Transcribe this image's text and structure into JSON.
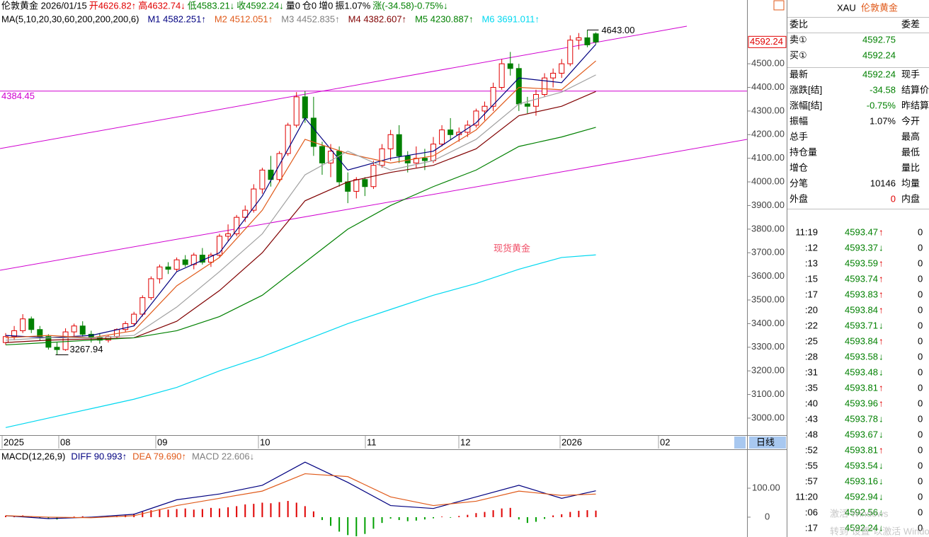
{
  "header": {
    "segments": [
      {
        "text": "伦敦黄金 2026/01/15",
        "color": "#000000"
      },
      {
        "text": "开4626.82↑",
        "color": "#e00000"
      },
      {
        "text": "高4632.74↓",
        "color": "#e00000"
      },
      {
        "text": "低4583.21↓",
        "color": "#008000"
      },
      {
        "text": "收4592.24↓",
        "color": "#008000"
      },
      {
        "text": "量0",
        "color": "#000000"
      },
      {
        "text": "仓0",
        "color": "#000000"
      },
      {
        "text": "增0",
        "color": "#000000"
      },
      {
        "text": "振1.07%",
        "color": "#000000"
      },
      {
        "text": "涨(-34.58)-0.75%↓",
        "color": "#008000"
      }
    ],
    "ma_segments": [
      {
        "text": "MA(5,10,20,30,60,200,200,200,6)",
        "color": "#000000"
      },
      {
        "text": "M1 4582.251↑",
        "color": "#000080"
      },
      {
        "text": "M2 4512.051↑",
        "color": "#e05a1a"
      },
      {
        "text": "M3 4452.835↑",
        "color": "#808080"
      },
      {
        "text": "M4 4382.607↑",
        "color": "#800000"
      },
      {
        "text": "M5 4230.887↑",
        "color": "#008000"
      },
      {
        "text": "M6 3691.011↑",
        "color": "#00d8f0"
      }
    ]
  },
  "chart": {
    "ylim": [
      2928,
      4716
    ],
    "yticks": [
      {
        "value": 3000,
        "label": "3000.00"
      },
      {
        "value": 3100,
        "label": "3100.00"
      },
      {
        "value": 3200,
        "label": "3200.00"
      },
      {
        "value": 3300,
        "label": "3300.00"
      },
      {
        "value": 3400,
        "label": "3400.00"
      },
      {
        "value": 3500,
        "label": "3500.00"
      },
      {
        "value": 3600,
        "label": "3600.00"
      },
      {
        "value": 3700,
        "label": "3700.00"
      },
      {
        "value": 3800,
        "label": "3800.00"
      },
      {
        "value": 3900,
        "label": "3900.00"
      },
      {
        "value": 4000,
        "label": "4000.00"
      },
      {
        "value": 4100,
        "label": "4100.00"
      },
      {
        "value": 4200,
        "label": "4200.00"
      },
      {
        "value": 4300,
        "label": "4300.00"
      },
      {
        "value": 4400,
        "label": "4400.00"
      },
      {
        "value": 4500,
        "label": "4500.00"
      }
    ],
    "current_price": {
      "value": 4592.24,
      "label": "4592.24"
    },
    "hline": {
      "value": 4384.45,
      "label": "4384.45"
    },
    "high_note": {
      "value": 4643,
      "label": "4643.00"
    },
    "low_note": {
      "value": 3267.94,
      "label": "3267.94"
    },
    "watermark": "现货黄金",
    "x_labels": [
      "2025",
      "08",
      "09",
      "10",
      "11",
      "12",
      "2026",
      "02"
    ],
    "period_button": "日线",
    "candles": [
      [
        3320,
        3360,
        3310,
        3345
      ],
      [
        3345,
        3390,
        3330,
        3370
      ],
      [
        3370,
        3440,
        3360,
        3420
      ],
      [
        3420,
        3430,
        3360,
        3375
      ],
      [
        3375,
        3390,
        3330,
        3345
      ],
      [
        3345,
        3355,
        3290,
        3300
      ],
      [
        3300,
        3320,
        3267.94,
        3290
      ],
      [
        3290,
        3380,
        3285,
        3365
      ],
      [
        3365,
        3400,
        3345,
        3390
      ],
      [
        3390,
        3410,
        3345,
        3355
      ],
      [
        3355,
        3370,
        3320,
        3340
      ],
      [
        3340,
        3360,
        3315,
        3330
      ],
      [
        3330,
        3350,
        3320,
        3345
      ],
      [
        3345,
        3380,
        3335,
        3375
      ],
      [
        3375,
        3410,
        3365,
        3400
      ],
      [
        3400,
        3450,
        3390,
        3440
      ],
      [
        3440,
        3520,
        3430,
        3510
      ],
      [
        3510,
        3600,
        3500,
        3590
      ],
      [
        3590,
        3650,
        3570,
        3640
      ],
      [
        3640,
        3660,
        3610,
        3630
      ],
      [
        3630,
        3680,
        3620,
        3670
      ],
      [
        3670,
        3690,
        3640,
        3650
      ],
      [
        3650,
        3700,
        3630,
        3690
      ],
      [
        3690,
        3720,
        3650,
        3660
      ],
      [
        3660,
        3700,
        3640,
        3690
      ],
      [
        3690,
        3780,
        3680,
        3770
      ],
      [
        3770,
        3820,
        3750,
        3780
      ],
      [
        3780,
        3860,
        3770,
        3850
      ],
      [
        3850,
        3900,
        3830,
        3880
      ],
      [
        3880,
        3990,
        3870,
        3970
      ],
      [
        3970,
        4060,
        3950,
        4050
      ],
      [
        4050,
        4110,
        3980,
        4010
      ],
      [
        4010,
        4130,
        4000,
        4120
      ],
      [
        4120,
        4250,
        4110,
        4240
      ],
      [
        4240,
        4380,
        4230,
        4360
      ],
      [
        4360,
        4384.45,
        4250,
        4270
      ],
      [
        4270,
        4360,
        4110,
        4150
      ],
      [
        4150,
        4170,
        4030,
        4080
      ],
      [
        4080,
        4160,
        4020,
        4130
      ],
      [
        4130,
        4150,
        3980,
        4000
      ],
      [
        4000,
        4040,
        3910,
        3960
      ],
      [
        3960,
        4020,
        3930,
        4010
      ],
      [
        4010,
        4020,
        3940,
        3980
      ],
      [
        3980,
        4090,
        3970,
        4070
      ],
      [
        4070,
        4160,
        4060,
        4140
      ],
      [
        4140,
        4220,
        4090,
        4200
      ],
      [
        4200,
        4240,
        4080,
        4110
      ],
      [
        4110,
        4130,
        4040,
        4080
      ],
      [
        4080,
        4150,
        4060,
        4100
      ],
      [
        4100,
        4140,
        4050,
        4090
      ],
      [
        4090,
        4190,
        4080,
        4160
      ],
      [
        4160,
        4240,
        4150,
        4220
      ],
      [
        4220,
        4270,
        4180,
        4200
      ],
      [
        4200,
        4230,
        4170,
        4210
      ],
      [
        4210,
        4260,
        4190,
        4240
      ],
      [
        4240,
        4310,
        4230,
        4300
      ],
      [
        4300,
        4340,
        4260,
        4320
      ],
      [
        4320,
        4420,
        4300,
        4400
      ],
      [
        4400,
        4520,
        4390,
        4500
      ],
      [
        4500,
        4550,
        4450,
        4480
      ],
      [
        4480,
        4500,
        4300,
        4330
      ],
      [
        4330,
        4360,
        4290,
        4320
      ],
      [
        4320,
        4390,
        4280,
        4370
      ],
      [
        4370,
        4460,
        4360,
        4440
      ],
      [
        4440,
        4480,
        4400,
        4460
      ],
      [
        4460,
        4520,
        4440,
        4500
      ],
      [
        4500,
        4620,
        4490,
        4600
      ],
      [
        4600,
        4630,
        4560,
        4610
      ],
      [
        4610,
        4643,
        4570,
        4580
      ],
      [
        4626.82,
        4632.74,
        4583.21,
        4592.24
      ]
    ],
    "ma_x": [
      0,
      5,
      10,
      15,
      20,
      25,
      30,
      35,
      40,
      45,
      50,
      55,
      60,
      65,
      69
    ],
    "ma": [
      {
        "color": "#000080",
        "values": [
          3350,
          3340,
          3350,
          3390,
          3620,
          3700,
          3940,
          4270,
          4050,
          4100,
          4130,
          4250,
          4440,
          4420,
          4582.251
        ]
      },
      {
        "color": "#e05a1a",
        "values": [
          3340,
          3350,
          3340,
          3370,
          3560,
          3680,
          3880,
          4180,
          4120,
          4080,
          4110,
          4220,
          4400,
          4390,
          4512.051
        ]
      },
      {
        "color": "#a0a0a0",
        "values": [
          3330,
          3340,
          3340,
          3350,
          3470,
          3620,
          3780,
          4030,
          4130,
          4050,
          4090,
          4180,
          4330,
          4380,
          4452.835
        ]
      },
      {
        "color": "#800000",
        "values": [
          3320,
          3330,
          3335,
          3340,
          3410,
          3540,
          3700,
          3920,
          4000,
          4040,
          4070,
          4140,
          4280,
          4320,
          4382.607
        ]
      },
      {
        "color": "#008000",
        "values": [
          3310,
          3320,
          3330,
          3340,
          3370,
          3430,
          3520,
          3660,
          3800,
          3900,
          3980,
          4050,
          4150,
          4190,
          4230.887
        ]
      },
      {
        "color": "#00d8f0",
        "values": [
          2960,
          3000,
          3040,
          3080,
          3130,
          3200,
          3260,
          3330,
          3400,
          3460,
          3520,
          3570,
          3630,
          3680,
          3691.011
        ]
      }
    ]
  },
  "macd": {
    "segments": [
      {
        "text": "MACD(12,26,9)",
        "color": "#000000"
      },
      {
        "text": "DIFF 90.993↑",
        "color": "#000080"
      },
      {
        "text": "DEA 79.690↑",
        "color": "#e05a1a"
      },
      {
        "text": "MACD 22.606↓",
        "color": "#808080"
      }
    ],
    "ylim": [
      -71,
      210
    ],
    "yticks": [
      0,
      {
        "value": 100,
        "label": "100.00"
      }
    ],
    "diff": [
      5,
      -5,
      0,
      10,
      60,
      80,
      110,
      190,
      120,
      40,
      30,
      70,
      110,
      65,
      90.993
    ],
    "dea": [
      5,
      0,
      -2,
      5,
      40,
      65,
      90,
      150,
      140,
      70,
      40,
      55,
      90,
      75,
      79.69
    ],
    "hist": [
      5,
      4,
      6,
      3,
      -2,
      -6,
      -8,
      -4,
      2,
      3,
      1,
      0,
      2,
      4,
      8,
      12,
      18,
      24,
      28,
      26,
      28,
      30,
      26,
      28,
      32,
      30,
      34,
      38,
      44,
      46,
      50,
      48,
      52,
      56,
      50,
      38,
      20,
      -10,
      -30,
      -50,
      -62,
      -66,
      -58,
      -40,
      -20,
      -5,
      -10,
      -14,
      -12,
      -8,
      -4,
      2,
      -2,
      4,
      8,
      14,
      18,
      24,
      30,
      32,
      -8,
      -20,
      -16,
      -6,
      6,
      10,
      18,
      22,
      24,
      22.606
    ]
  },
  "quote": {
    "symbol": "XAU",
    "name": "伦敦黄金",
    "rows": [
      {
        "label": "委比",
        "value": "",
        "right": "委差",
        "color": "#000000"
      },
      {
        "label": "卖①",
        "value": "4592.75",
        "right": "",
        "color": "#008000"
      },
      {
        "label": "买①",
        "value": "4592.24",
        "right": "",
        "color": "#008000"
      },
      {
        "label": "最新",
        "value": "4592.24",
        "right": "现手",
        "color": "#008000"
      },
      {
        "label": "涨跌[结]",
        "value": "-34.58",
        "right": "结算价",
        "color": "#008000"
      },
      {
        "label": "涨幅[结]",
        "value": "-0.75%",
        "right": "昨结算",
        "color": "#008000"
      },
      {
        "label": "振幅",
        "value": "1.07%",
        "right": "今开",
        "color": "#000000"
      },
      {
        "label": "总手",
        "value": "",
        "right": "最高",
        "color": "#000000"
      },
      {
        "label": "持仓量",
        "value": "",
        "right": "最低",
        "color": "#000000"
      },
      {
        "label": "增仓",
        "value": "",
        "right": "量比",
        "color": "#000000"
      },
      {
        "label": "分笔",
        "value": "10146",
        "right": "均量",
        "color": "#000000"
      },
      {
        "label": "外盘",
        "value": "0",
        "right": "内盘",
        "color": "#e00000"
      }
    ]
  },
  "ticks": [
    {
      "time": "11:19",
      "price": "4593.47",
      "dir": "↑",
      "vol": "0"
    },
    {
      "time": ":12",
      "price": "4593.37",
      "dir": "↓",
      "vol": "0"
    },
    {
      "time": ":13",
      "price": "4593.59",
      "dir": "↑",
      "vol": "0"
    },
    {
      "time": ":15",
      "price": "4593.74",
      "dir": "↑",
      "vol": "0"
    },
    {
      "time": ":17",
      "price": "4593.83",
      "dir": "↑",
      "vol": "0"
    },
    {
      "time": ":20",
      "price": "4593.84",
      "dir": "↑",
      "vol": "0"
    },
    {
      "time": ":22",
      "price": "4593.71",
      "dir": "↓",
      "vol": "0"
    },
    {
      "time": ":25",
      "price": "4593.84",
      "dir": "↑",
      "vol": "0"
    },
    {
      "time": ":28",
      "price": "4593.58",
      "dir": "↓",
      "vol": "0"
    },
    {
      "time": ":31",
      "price": "4593.48",
      "dir": "↓",
      "vol": "0"
    },
    {
      "time": ":35",
      "price": "4593.81",
      "dir": "↑",
      "vol": "0"
    },
    {
      "time": ":40",
      "price": "4593.96",
      "dir": "↑",
      "vol": "0"
    },
    {
      "time": ":43",
      "price": "4593.78",
      "dir": "↓",
      "vol": "0"
    },
    {
      "time": ":48",
      "price": "4593.67",
      "dir": "↓",
      "vol": "0"
    },
    {
      "time": ":52",
      "price": "4593.81",
      "dir": "↑",
      "vol": "0"
    },
    {
      "time": ":55",
      "price": "4593.54",
      "dir": "↓",
      "vol": "0"
    },
    {
      "time": ":57",
      "price": "4593.16",
      "dir": "↓",
      "vol": "0"
    },
    {
      "time": "11:20",
      "price": "4592.94",
      "dir": "↓",
      "vol": "0"
    },
    {
      "time": ":06",
      "price": "4592.56",
      "dir": "↓",
      "vol": "0"
    },
    {
      "time": ":17",
      "price": "4592.24",
      "dir": "↓",
      "vol": "0"
    }
  ],
  "activation": {
    "line1": "激活 Windows",
    "line2": "转到\"设置\"以激活 Windows。"
  }
}
